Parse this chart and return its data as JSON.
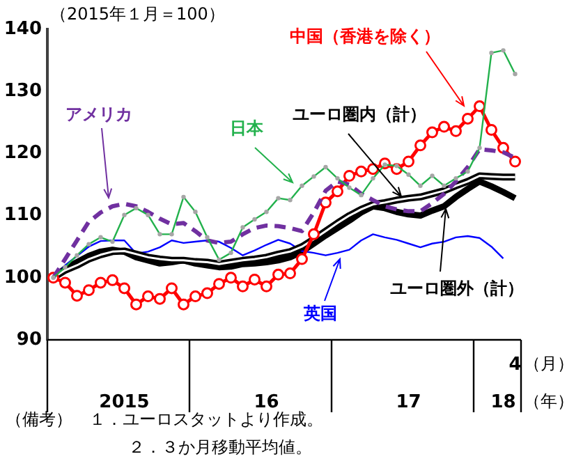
{
  "chart_data": {
    "type": "line",
    "ylabel": "（2015年１月＝100）",
    "xlabel": "（年）",
    "annotations": [
      "（月）",
      "（備考）　１．ユーロスタットより作成。",
      "２．３か月移動平均値。"
    ],
    "categories": [
      null,
      null,
      null,
      null,
      null,
      null,
      "2015",
      null,
      null,
      null,
      null,
      null,
      null,
      null,
      null,
      null,
      null,
      null,
      "16",
      null,
      null,
      null,
      null,
      null,
      null,
      null,
      null,
      null,
      null,
      null,
      "17",
      null,
      null,
      null,
      null,
      null,
      null,
      null,
      "18",
      "4"
    ],
    "ylim": [
      90,
      140
    ],
    "yticks": [
      90,
      100,
      110,
      120,
      130,
      140
    ],
    "grid": false,
    "legend": false,
    "series": [
      {
        "name": "日本",
        "color": "#22b14c",
        "marker": "circle",
        "values": [
          100,
          101.7,
          103.6,
          105.4,
          106.5,
          105.8,
          110.1,
          111.2,
          110.1,
          107,
          107,
          113,
          110.6,
          106.5,
          102.9,
          104,
          108.1,
          109.4,
          110.6,
          112.8,
          112.5,
          114.8,
          116.3,
          117.8,
          116,
          114.5,
          113.3,
          116,
          118.2,
          118,
          116.6,
          114.8,
          116.4,
          114.8,
          116,
          117.1,
          120.9,
          136.2,
          136.6,
          132.8
        ]
      },
      {
        "name": "アメリカ",
        "color": "#7030a0",
        "marker": "none",
        "line_style": "dashed",
        "values": [
          100,
          103,
          106,
          109,
          110.5,
          111.5,
          111.9,
          111.5,
          110.6,
          109.5,
          108.6,
          108.8,
          107.5,
          106,
          105.6,
          105.8,
          107,
          108,
          108.4,
          108.3,
          108,
          107.5,
          110.5,
          114,
          115.5,
          115,
          113.5,
          112.5,
          111.5,
          111,
          110.7,
          110.7,
          112,
          113.5,
          115.5,
          117.8,
          120.7,
          120.5,
          120.2,
          119.3
        ]
      },
      {
        "name": "中国（香港を除く）",
        "color": "#ff0000",
        "marker": "circle",
        "values": [
          100,
          99.2,
          97.1,
          98,
          99.2,
          99.6,
          98.3,
          95.7,
          97,
          96.6,
          98.3,
          95.7,
          97,
          97.5,
          99,
          100,
          98.6,
          99.7,
          98.6,
          100.5,
          100.7,
          103,
          107,
          112.1,
          113.9,
          116.4,
          117.1,
          117.5,
          118.4,
          117.5,
          118.7,
          121.3,
          123.4,
          124.3,
          123.6,
          125.6,
          127.6,
          123.8,
          120.9,
          118.7
        ]
      },
      {
        "name": "ユーロ圏内（計）",
        "color": "#000000",
        "marker": "none",
        "values": [
          100,
          101.2,
          102,
          103,
          103.7,
          104.2,
          104.3,
          103.8,
          103.3,
          103,
          102.8,
          102.8,
          102.6,
          102.5,
          102.2,
          102.5,
          102.8,
          103,
          103.3,
          103.8,
          104.2,
          105,
          106.2,
          107.5,
          108.8,
          110,
          111,
          111.8,
          112.1,
          112.5,
          112.8,
          113,
          113.5,
          114,
          114.8,
          115.5,
          116.4,
          116.3,
          116.2,
          116.2
        ]
      },
      {
        "name": "英国",
        "color": "#0000ff",
        "marker": "none",
        "values": [
          100,
          102,
          103.5,
          105,
          105.9,
          106,
          106,
          103.9,
          104.2,
          104.9,
          106,
          105.6,
          105.8,
          106,
          105.8,
          104.8,
          103.6,
          104.4,
          105.3,
          106.1,
          105.5,
          104.3,
          104,
          103.6,
          104,
          104.5,
          106,
          107,
          106.5,
          106.1,
          105.5,
          104.9,
          105.5,
          105.8,
          106.5,
          106.7,
          106.4,
          105,
          103.1,
          null
        ]
      },
      {
        "name": "ユーロ圏外（計）",
        "color": "#000000",
        "marker": "none",
        "values": [
          100,
          101.5,
          102.5,
          103.5,
          104.2,
          104.5,
          104.2,
          103.3,
          102.8,
          102.3,
          102.5,
          102.8,
          102.3,
          102,
          101.7,
          101.8,
          102.2,
          102.3,
          102.5,
          102.8,
          103.3,
          104.2,
          105.5,
          106.8,
          108,
          109.2,
          110.5,
          111.5,
          111.2,
          110.6,
          110.2,
          110,
          110.8,
          111.5,
          113,
          114.3,
          115.5,
          114.7,
          113.8,
          112.8
        ]
      }
    ]
  }
}
